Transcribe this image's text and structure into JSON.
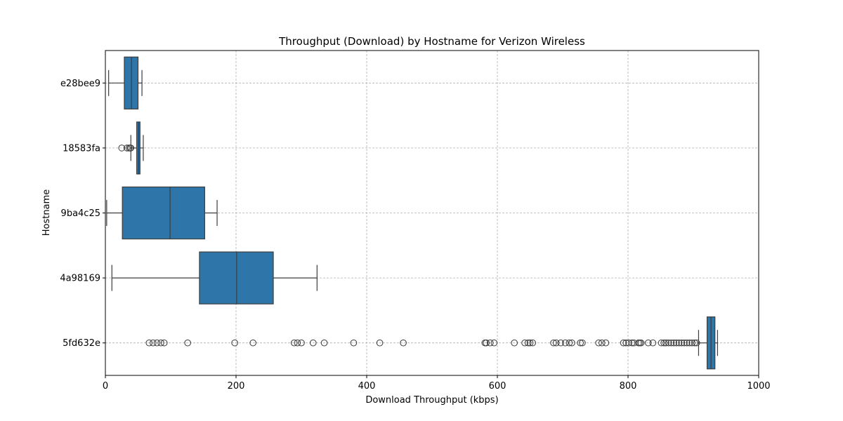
{
  "chart_data": {
    "type": "boxplot",
    "orientation": "horizontal",
    "title": "Throughput (Download) by Hostname for Verizon Wireless",
    "xlabel": "Download Throughput (kbps)",
    "ylabel": "Hostname",
    "xlim": [
      0,
      1000
    ],
    "xticks": [
      0,
      200,
      400,
      600,
      800,
      1000
    ],
    "grid": true,
    "box_color": "#2e75a9",
    "line_color": "#3d3d3d",
    "grid_color": "#b0b0b0",
    "categories": [
      "e28bee9",
      "18583fa",
      "9ba4c25",
      "4a98169",
      "5fd632e"
    ],
    "boxes": [
      {
        "name": "e28bee9",
        "whisker_low": 5,
        "q1": 29,
        "median": 40,
        "q3": 50,
        "whisker_high": 56,
        "outliers": []
      },
      {
        "name": "18583fa",
        "whisker_low": 39,
        "q1": 48,
        "median": 51,
        "q3": 53,
        "whisker_high": 58,
        "outliers": [
          25,
          33,
          36,
          38,
          39
        ]
      },
      {
        "name": "9ba4c25",
        "whisker_low": 2,
        "q1": 26,
        "median": 99,
        "q3": 152,
        "whisker_high": 171,
        "outliers": []
      },
      {
        "name": "4a98169",
        "whisker_low": 10,
        "q1": 144,
        "median": 201,
        "q3": 257,
        "whisker_high": 324,
        "outliers": []
      },
      {
        "name": "5fd632e",
        "whisker_low": 908,
        "q1": 921,
        "median": 927,
        "q3": 933,
        "whisker_high": 937,
        "outliers": [
          67,
          73,
          79,
          85,
          90,
          126,
          198,
          226,
          289,
          294,
          300,
          318,
          335,
          380,
          420,
          456,
          581,
          583,
          589,
          595,
          626,
          642,
          647,
          650,
          654,
          686,
          690,
          697,
          704,
          710,
          714,
          727,
          730,
          755,
          760,
          766,
          793,
          797,
          801,
          806,
          809,
          816,
          818,
          820,
          831,
          838,
          851,
          855,
          858,
          862,
          866,
          870,
          874,
          878,
          882,
          886,
          890,
          894,
          898,
          902,
          905
        ]
      }
    ]
  }
}
